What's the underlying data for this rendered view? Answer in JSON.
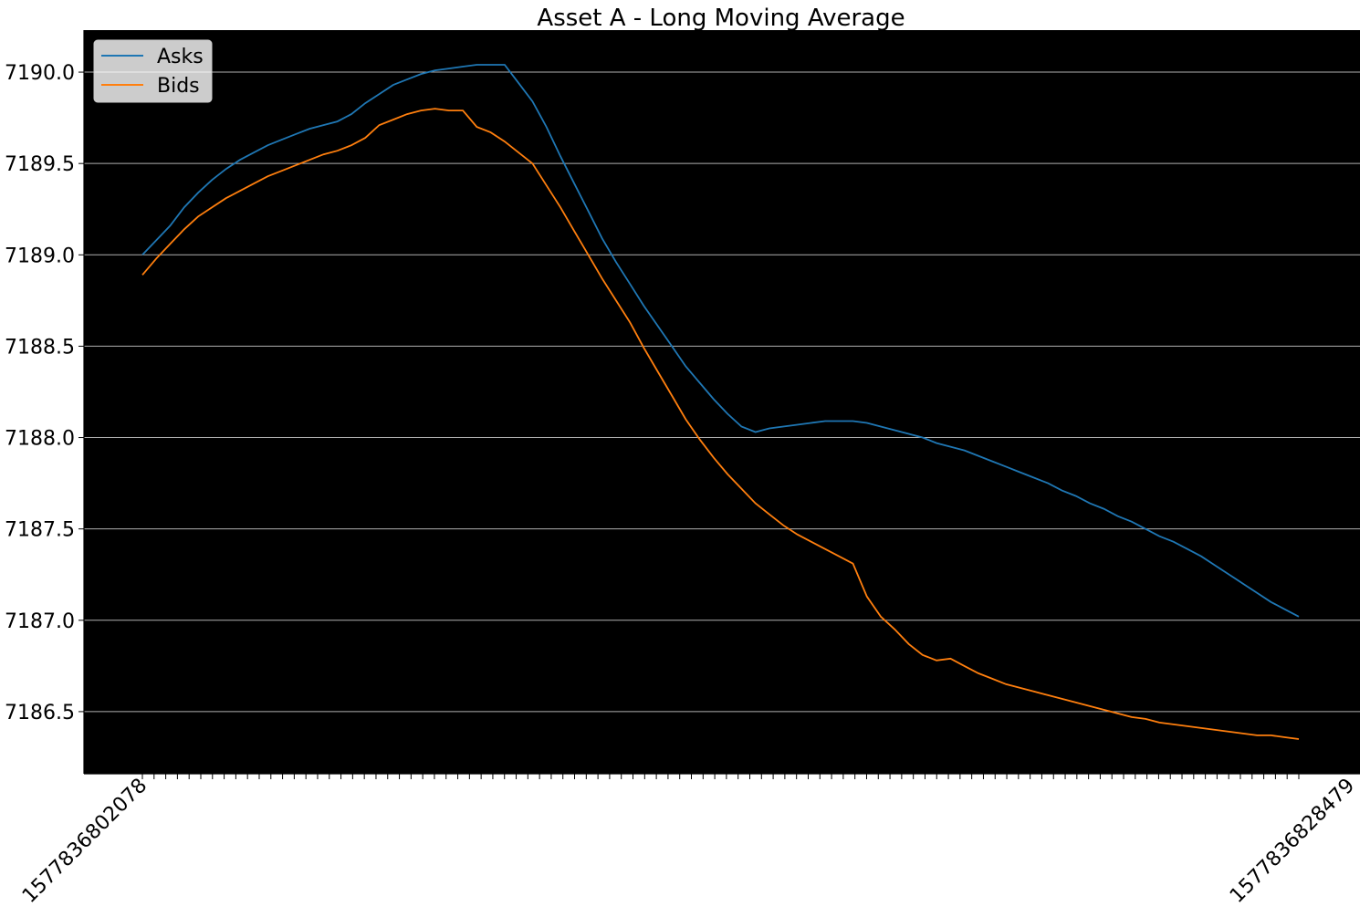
{
  "chart_data": {
    "type": "line",
    "title": "Asset A - Long Moving Average",
    "xlabel": "",
    "ylabel": "",
    "ylim": [
      7186.16,
      7190.23
    ],
    "yticks": [
      7186.5,
      7187.0,
      7187.5,
      7188.0,
      7188.5,
      7189.0,
      7189.5,
      7190.0
    ],
    "ytick_labels": [
      "7186.5",
      "7187.0",
      "7187.5",
      "7188.0",
      "7188.5",
      "7189.0",
      "7189.5",
      "7190.0"
    ],
    "grid": "horizontal",
    "legend_position": "top-left",
    "background": "#000000",
    "x_tick_labels": {
      "first": "1577836802078",
      "last": "1577836828479",
      "count": 100,
      "rotation_deg": 45,
      "note_visible": "remaining tick labels overlap and are unreadable"
    },
    "series": [
      {
        "name": "Asks",
        "color": "#1f77b4",
        "values": [
          7189.0,
          7189.08,
          7189.16,
          7189.26,
          7189.34,
          7189.41,
          7189.47,
          7189.52,
          7189.56,
          7189.6,
          7189.63,
          7189.66,
          7189.69,
          7189.71,
          7189.73,
          7189.77,
          7189.83,
          7189.88,
          7189.93,
          7189.96,
          7189.99,
          7190.01,
          7190.02,
          7190.03,
          7190.04,
          7190.04,
          7190.04,
          7189.94,
          7189.84,
          7189.7,
          7189.54,
          7189.39,
          7189.24,
          7189.09,
          7188.96,
          7188.84,
          7188.72,
          7188.61,
          7188.5,
          7188.39,
          7188.3,
          7188.21,
          7188.13,
          7188.06,
          7188.03,
          7188.05,
          7188.06,
          7188.07,
          7188.08,
          7188.09,
          7188.09,
          7188.09,
          7188.08,
          7188.06,
          7188.04,
          7188.02,
          7188.0,
          7187.97,
          7187.95,
          7187.93,
          7187.9,
          7187.87,
          7187.84,
          7187.81,
          7187.78,
          7187.75,
          7187.71,
          7187.68,
          7187.64,
          7187.61,
          7187.57,
          7187.54,
          7187.5,
          7187.46,
          7187.43,
          7187.39,
          7187.35,
          7187.3,
          7187.25,
          7187.2,
          7187.15,
          7187.1,
          7187.06,
          7187.02
        ],
        "x_start_index": 0
      },
      {
        "name": "Bids",
        "color": "#ff7f0e",
        "values": [
          7188.89,
          7188.98,
          7189.06,
          7189.14,
          7189.21,
          7189.26,
          7189.31,
          7189.35,
          7189.39,
          7189.43,
          7189.46,
          7189.49,
          7189.52,
          7189.55,
          7189.57,
          7189.6,
          7189.64,
          7189.71,
          7189.74,
          7189.77,
          7189.79,
          7189.8,
          7189.79,
          7189.79,
          7189.7,
          7189.67,
          7189.62,
          7189.56,
          7189.5,
          7189.38,
          7189.26,
          7189.13,
          7189.0,
          7188.87,
          7188.75,
          7188.63,
          7188.49,
          7188.36,
          7188.23,
          7188.1,
          7187.99,
          7187.89,
          7187.8,
          7187.72,
          7187.64,
          7187.58,
          7187.52,
          7187.47,
          7187.43,
          7187.39,
          7187.35,
          7187.31,
          7187.13,
          7187.02,
          7186.95,
          7186.87,
          7186.81,
          7186.78,
          7186.79,
          7186.75,
          7186.71,
          7186.68,
          7186.65,
          7186.63,
          7186.61,
          7186.59,
          7186.57,
          7186.55,
          7186.53,
          7186.51,
          7186.49,
          7186.47,
          7186.46,
          7186.44,
          7186.43,
          7186.42,
          7186.41,
          7186.4,
          7186.39,
          7186.38,
          7186.37,
          7186.37,
          7186.36,
          7186.35
        ],
        "x_start_index": 0
      }
    ]
  }
}
